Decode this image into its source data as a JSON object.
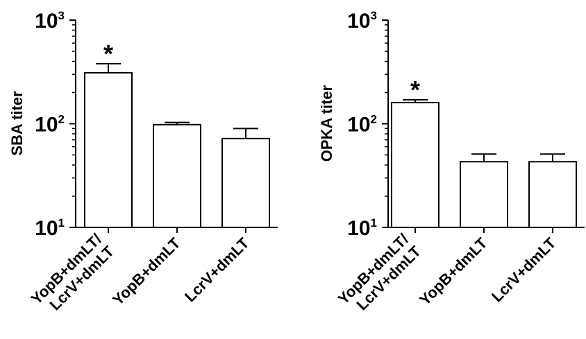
{
  "chart_data": [
    {
      "type": "bar",
      "title": "",
      "xlabel": "",
      "ylabel": "SBA titer",
      "yscale": "log",
      "ylim": [
        10,
        1000
      ],
      "yticks": [
        {
          "value": 10,
          "base": "10",
          "exp": "1"
        },
        {
          "value": 100,
          "base": "10",
          "exp": "2"
        },
        {
          "value": 1000,
          "base": "10",
          "exp": "3"
        }
      ],
      "categories": [
        [
          "YopB+dmLT/",
          "LcrV+dmLT"
        ],
        [
          "YopB+dmLT"
        ],
        [
          "LcrV+dmLT"
        ]
      ],
      "values": [
        310,
        98,
        72
      ],
      "error_upper": [
        380,
        103,
        90
      ],
      "annotations": [
        "*",
        "",
        ""
      ]
    },
    {
      "type": "bar",
      "title": "",
      "xlabel": "",
      "ylabel": "OPKA titer",
      "yscale": "log",
      "ylim": [
        10,
        1000
      ],
      "yticks": [
        {
          "value": 10,
          "base": "10",
          "exp": "1"
        },
        {
          "value": 100,
          "base": "10",
          "exp": "2"
        },
        {
          "value": 1000,
          "base": "10",
          "exp": "3"
        }
      ],
      "categories": [
        [
          "YopB+dmLT/",
          "LcrV+dmLT"
        ],
        [
          "YopB+dmLT"
        ],
        [
          "LcrV+dmLT"
        ]
      ],
      "values": [
        160,
        43,
        43
      ],
      "error_upper": [
        170,
        51,
        51
      ],
      "annotations": [
        "*",
        "",
        ""
      ]
    }
  ]
}
